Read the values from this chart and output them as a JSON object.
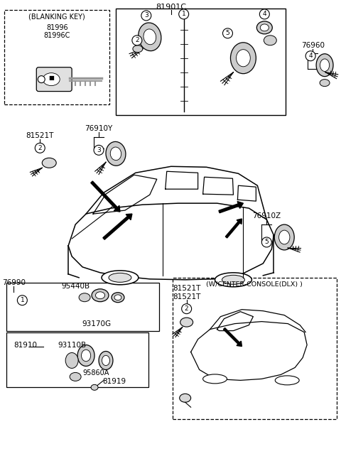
{
  "background_color": "#ffffff",
  "fig_width": 4.8,
  "fig_height": 6.56,
  "dpi": 100,
  "top_label": "81901C",
  "blanking_key_title": "(BLANKING KEY)",
  "blanking_code1": "81996",
  "blanking_code2": "81996C",
  "lbl_76910Y": "76910Y",
  "lbl_81521T": "81521T",
  "lbl_76960": "76960",
  "lbl_76910Z": "76910Z",
  "lbl_76990": "76990",
  "lbl_95440B": "95440B",
  "lbl_93170G": "93170G",
  "lbl_81910": "81910",
  "lbl_93110B": "93110B",
  "lbl_95860A": "95860A",
  "lbl_81919": "81919",
  "lbl_wcenter": "(W/CENTER-CONSOLE(DLX) )",
  "lbl_81521T_r1": "81521T",
  "lbl_81521T_r2": "81521T"
}
